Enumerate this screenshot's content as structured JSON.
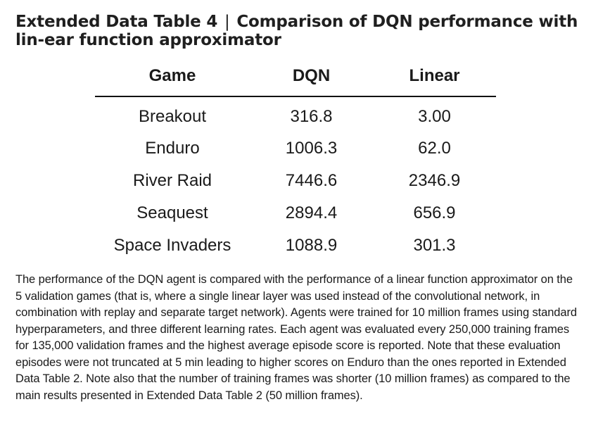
{
  "title": {
    "label": "Extended Data Table 4",
    "separator": "|",
    "text": "Comparison of DQN performance with lin-ear function approximator"
  },
  "table": {
    "headers": [
      "Game",
      "DQN",
      "Linear"
    ],
    "rows": [
      {
        "game": "Breakout",
        "dqn": "316.8",
        "linear": "3.00"
      },
      {
        "game": "Enduro",
        "dqn": "1006.3",
        "linear": "62.0"
      },
      {
        "game": "River Raid",
        "dqn": "7446.6",
        "linear": "2346.9"
      },
      {
        "game": "Seaquest",
        "dqn": "2894.4",
        "linear": "656.9"
      },
      {
        "game": "Space Invaders",
        "dqn": "1088.9",
        "linear": "301.3"
      }
    ]
  },
  "caption": "The performance of the DQN agent is compared with the performance of a linear function approximator on the 5 validation games (that is, where a single linear layer was used instead of the convolutional network, in combination with replay and separate target network). Agents were trained for 10 million frames using standard hyperparameters, and three different learning rates. Each agent was evaluated every 250,000 training frames for 135,000 validation frames and the highest average episode score is reported. Note that these evaluation episodes were not truncated at 5 min leading to higher scores on Enduro than the ones reported in Extended Data Table 2. Note also that the number of training frames was shorter (10 million frames) as compared to the main results presented in Extended Data Table 2 (50 million frames)."
}
